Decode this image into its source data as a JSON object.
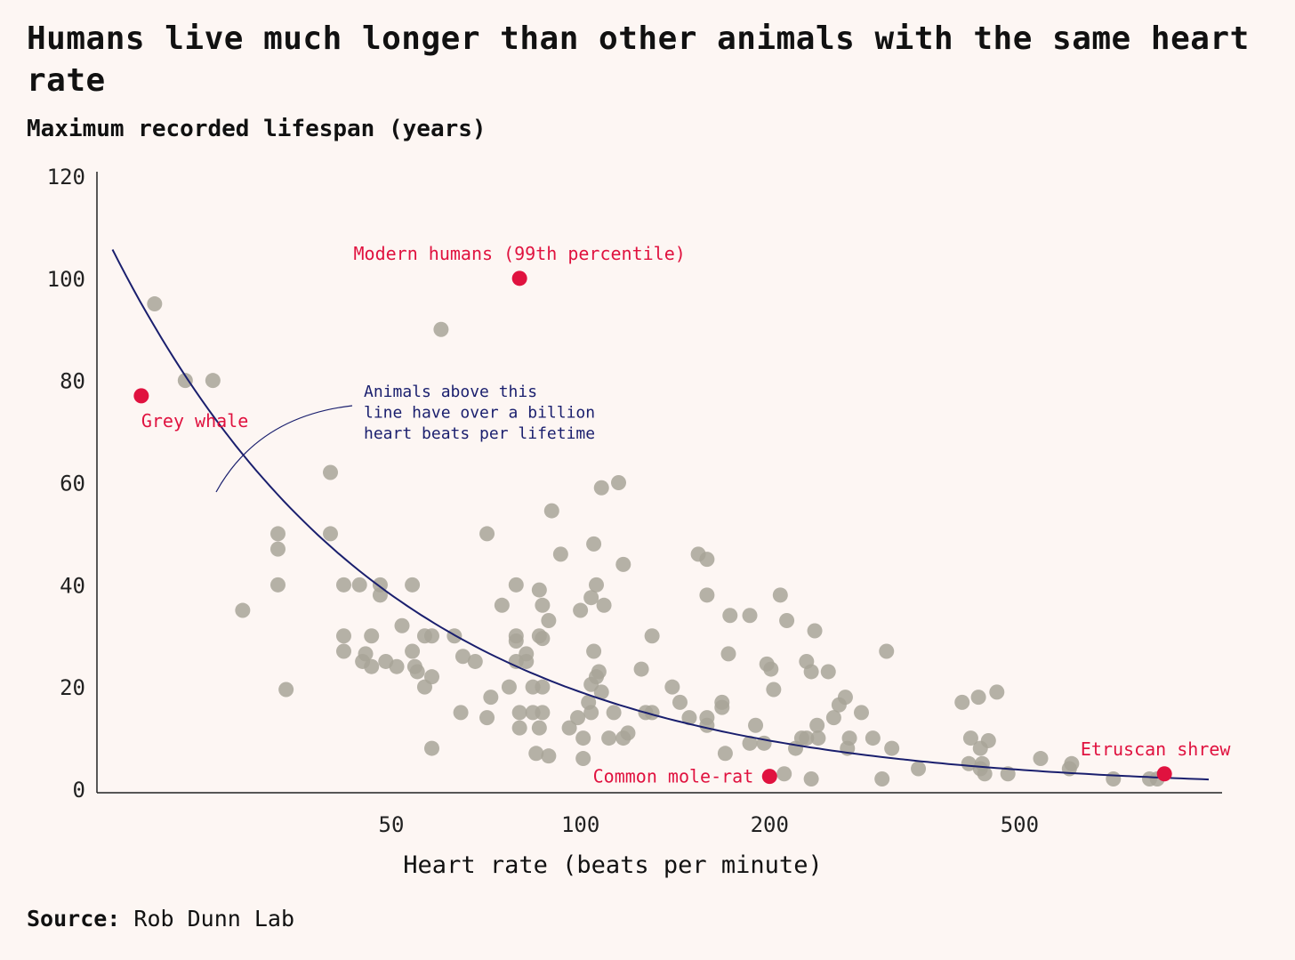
{
  "header": {
    "title": "Humans live much longer than other animals with the same heart rate",
    "subtitle": "Maximum recorded lifespan (years)"
  },
  "footer": {
    "source_label": "Source:",
    "source_value": "Rob Dunn Lab"
  },
  "colors": {
    "background": "#fdf6f3",
    "point": "#a8a598",
    "highlight": "#e0123f",
    "curve": "#1a1f6e",
    "axis": "#222222"
  },
  "chart_data": {
    "type": "scatter",
    "title": "Humans live much longer than other animals with the same heart rate",
    "ylabel": "Maximum recorded lifespan (years)",
    "xlabel": "Heart rate (beats per minute)",
    "xscale": "log",
    "xlim": [
      17,
      1050
    ],
    "ylim": [
      0,
      120
    ],
    "x_ticks": [
      50,
      100,
      200,
      500
    ],
    "y_ticks": [
      0,
      20,
      40,
      60,
      80,
      100,
      120
    ],
    "grid": false,
    "curve": {
      "name": "One billion heart beats per lifetime",
      "lifetime_beats": 1000000000,
      "x_range": [
        18,
        1000
      ]
    },
    "annotation": {
      "lines": [
        "Animals above this",
        "line have over a billion",
        "heart beats per lifetime"
      ]
    },
    "highlights": [
      {
        "label": "Grey whale",
        "x": 20,
        "y": 77,
        "label_pos": "below-right"
      },
      {
        "label": "Modern humans (99th percentile)",
        "x": 80,
        "y": 100,
        "label_pos": "above"
      },
      {
        "label": "Common mole-rat",
        "x": 200,
        "y": 2.5,
        "label_pos": "left"
      },
      {
        "label": "Etruscan shrew",
        "x": 850,
        "y": 3,
        "label_pos": "above"
      }
    ],
    "points": [
      [
        21,
        95
      ],
      [
        23.5,
        80
      ],
      [
        26,
        80
      ],
      [
        29,
        35
      ],
      [
        33,
        50
      ],
      [
        33,
        47
      ],
      [
        33,
        40
      ],
      [
        34,
        19.5
      ],
      [
        40,
        62
      ],
      [
        40,
        50
      ],
      [
        42,
        40
      ],
      [
        42,
        30
      ],
      [
        42,
        27
      ],
      [
        44.5,
        40
      ],
      [
        45,
        25
      ],
      [
        45.5,
        26.5
      ],
      [
        46.5,
        30
      ],
      [
        46.5,
        24
      ],
      [
        48,
        40
      ],
      [
        48,
        38
      ],
      [
        49,
        25
      ],
      [
        51,
        24
      ],
      [
        52,
        32
      ],
      [
        54,
        40
      ],
      [
        54,
        27
      ],
      [
        54.5,
        24
      ],
      [
        55,
        23
      ],
      [
        56.5,
        20
      ],
      [
        56.5,
        30
      ],
      [
        58,
        22
      ],
      [
        58,
        30
      ],
      [
        58,
        8
      ],
      [
        60,
        90
      ],
      [
        63,
        30
      ],
      [
        64.5,
        15
      ],
      [
        65,
        26
      ],
      [
        68,
        25
      ],
      [
        71,
        14
      ],
      [
        71,
        50
      ],
      [
        72,
        18
      ],
      [
        75,
        36
      ],
      [
        77,
        20
      ],
      [
        79,
        40
      ],
      [
        79,
        29
      ],
      [
        79,
        30
      ],
      [
        79,
        25
      ],
      [
        80,
        15
      ],
      [
        80,
        12
      ],
      [
        82,
        26.5
      ],
      [
        82,
        25
      ],
      [
        84,
        15
      ],
      [
        84,
        20
      ],
      [
        85,
        7
      ],
      [
        86,
        12
      ],
      [
        86,
        39
      ],
      [
        86,
        30
      ],
      [
        87,
        36
      ],
      [
        87,
        20
      ],
      [
        87,
        15
      ],
      [
        87,
        29.5
      ],
      [
        89,
        33
      ],
      [
        89,
        6.5
      ],
      [
        90,
        54.5
      ],
      [
        93,
        46
      ],
      [
        96,
        12
      ],
      [
        99,
        14
      ],
      [
        100,
        35
      ],
      [
        101,
        6
      ],
      [
        101,
        10
      ],
      [
        103,
        17
      ],
      [
        104,
        15
      ],
      [
        104,
        20.5
      ],
      [
        104,
        37.5
      ],
      [
        105,
        48
      ],
      [
        105,
        27
      ],
      [
        106,
        40
      ],
      [
        106,
        22
      ],
      [
        107,
        23
      ],
      [
        108,
        59
      ],
      [
        108,
        19
      ],
      [
        109,
        36
      ],
      [
        111,
        10
      ],
      [
        113,
        15
      ],
      [
        115,
        60
      ],
      [
        117,
        10
      ],
      [
        117,
        44
      ],
      [
        119,
        11
      ],
      [
        125,
        23.5
      ],
      [
        127,
        15
      ],
      [
        130,
        15
      ],
      [
        130,
        30
      ],
      [
        140,
        20
      ],
      [
        144,
        17
      ],
      [
        149,
        14
      ],
      [
        154,
        46
      ],
      [
        159,
        14
      ],
      [
        159,
        45
      ],
      [
        159,
        38
      ],
      [
        159,
        12.5
      ],
      [
        168,
        17
      ],
      [
        168,
        16
      ],
      [
        170,
        7
      ],
      [
        172,
        26.5
      ],
      [
        173,
        34
      ],
      [
        186,
        34
      ],
      [
        186,
        9
      ],
      [
        190,
        12.5
      ],
      [
        196,
        9
      ],
      [
        198,
        24.5
      ],
      [
        201,
        23.5
      ],
      [
        203,
        19.5
      ],
      [
        208,
        38
      ],
      [
        211,
        3
      ],
      [
        213,
        33
      ],
      [
        220,
        8
      ],
      [
        225,
        10
      ],
      [
        229,
        10
      ],
      [
        229,
        25
      ],
      [
        233,
        2
      ],
      [
        233,
        23
      ],
      [
        236,
        31
      ],
      [
        238,
        12.5
      ],
      [
        239,
        10
      ],
      [
        248,
        23
      ],
      [
        253,
        14
      ],
      [
        258,
        16.5
      ],
      [
        264,
        18
      ],
      [
        266,
        8
      ],
      [
        268,
        10
      ],
      [
        280,
        15
      ],
      [
        292,
        10
      ],
      [
        302,
        2
      ],
      [
        307,
        27
      ],
      [
        313,
        8
      ],
      [
        345,
        4
      ],
      [
        405,
        17
      ],
      [
        415,
        5
      ],
      [
        418,
        10
      ],
      [
        430,
        18
      ],
      [
        433,
        8
      ],
      [
        433,
        4
      ],
      [
        436,
        5
      ],
      [
        440,
        3
      ],
      [
        446,
        9.5
      ],
      [
        460,
        19
      ],
      [
        479,
        3
      ],
      [
        540,
        6
      ],
      [
        600,
        4
      ],
      [
        605,
        5
      ],
      [
        705,
        2
      ],
      [
        805,
        2
      ],
      [
        828,
        2
      ]
    ]
  }
}
